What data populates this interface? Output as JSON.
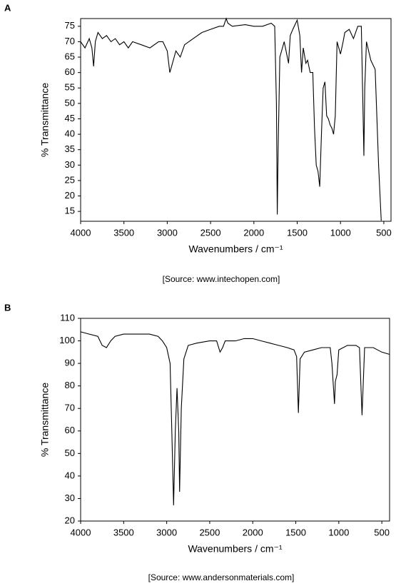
{
  "chart_data": [
    {
      "type": "line",
      "label": "A",
      "xlabel": "Wavenumbers / cm⁻¹",
      "ylabel": "% Transmittance",
      "source": "[Source: www.intechopen.com]",
      "xlim": [
        4000,
        417
      ],
      "ylim": [
        11.8,
        77.5
      ],
      "xticks": [
        4000,
        3500,
        3000,
        2500,
        2000,
        1500,
        1000,
        500
      ],
      "yticks": [
        15,
        20,
        25,
        30,
        35,
        40,
        45,
        50,
        55,
        60,
        65,
        70,
        75
      ],
      "color": "#000000",
      "x": [
        4000,
        3950,
        3900,
        3870,
        3850,
        3830,
        3800,
        3750,
        3700,
        3650,
        3600,
        3550,
        3500,
        3450,
        3400,
        3300,
        3200,
        3100,
        3050,
        3000,
        2970,
        2950,
        2900,
        2850,
        2800,
        2700,
        2600,
        2500,
        2400,
        2350,
        2320,
        2300,
        2250,
        2100,
        2000,
        1900,
        1800,
        1760,
        1740,
        1730,
        1720,
        1700,
        1650,
        1600,
        1580,
        1550,
        1500,
        1470,
        1450,
        1430,
        1400,
        1380,
        1350,
        1320,
        1300,
        1280,
        1260,
        1240,
        1220,
        1200,
        1180,
        1160,
        1140,
        1120,
        1100,
        1080,
        1060,
        1040,
        1000,
        970,
        950,
        900,
        850,
        800,
        760,
        730,
        720,
        700,
        650,
        600,
        560,
        530
      ],
      "values": [
        70,
        68,
        71,
        68,
        62,
        70,
        73,
        71,
        72,
        70,
        71,
        69,
        70,
        68,
        70,
        69,
        68,
        70,
        70,
        67,
        60,
        62,
        67,
        65,
        69,
        71,
        73,
        74,
        75,
        75,
        77.5,
        76,
        75,
        75.5,
        75,
        75,
        76,
        75,
        50,
        14,
        35,
        65,
        70,
        63,
        72,
        74,
        77,
        72,
        60,
        68,
        63,
        64,
        60,
        60,
        42,
        30,
        28,
        23,
        40,
        55,
        57,
        46,
        45,
        43,
        42,
        40,
        46,
        70,
        66,
        70,
        73,
        74,
        71,
        75,
        75,
        33,
        55,
        70,
        64,
        61,
        30,
        12
      ]
    },
    {
      "type": "line",
      "label": "B",
      "xlabel": "Wavenumbers / cm⁻¹",
      "ylabel": "% Transmittance",
      "source": "[Source: www.andersonmaterials.com]",
      "xlim": [
        4000,
        410
      ],
      "ylim": [
        20,
        110
      ],
      "xticks": [
        4000,
        3500,
        3000,
        2500,
        2000,
        1500,
        1000,
        500
      ],
      "yticks": [
        20,
        30,
        40,
        50,
        60,
        70,
        80,
        90,
        100,
        110
      ],
      "color": "#000000",
      "x": [
        4000,
        3900,
        3800,
        3750,
        3700,
        3650,
        3600,
        3500,
        3300,
        3200,
        3100,
        3050,
        3000,
        2960,
        2940,
        2920,
        2900,
        2880,
        2860,
        2850,
        2830,
        2800,
        2750,
        2650,
        2500,
        2420,
        2380,
        2350,
        2320,
        2200,
        2100,
        2000,
        1900,
        1800,
        1700,
        1600,
        1520,
        1490,
        1470,
        1450,
        1400,
        1300,
        1200,
        1100,
        1080,
        1060,
        1050,
        1040,
        1020,
        1000,
        900,
        800,
        760,
        730,
        700,
        600,
        500,
        410
      ],
      "values": [
        104,
        103,
        102,
        98,
        97,
        100,
        102,
        103,
        103,
        103,
        102,
        100,
        97,
        90,
        60,
        27,
        60,
        79,
        60,
        33,
        70,
        92,
        98,
        99,
        100,
        100,
        95,
        97,
        100,
        100,
        101,
        101,
        100,
        99,
        98,
        97,
        96,
        93,
        68,
        92,
        95,
        96,
        97,
        97,
        90,
        78,
        72,
        82,
        85,
        96,
        98,
        98,
        97,
        67,
        97,
        97,
        95,
        94
      ]
    }
  ]
}
